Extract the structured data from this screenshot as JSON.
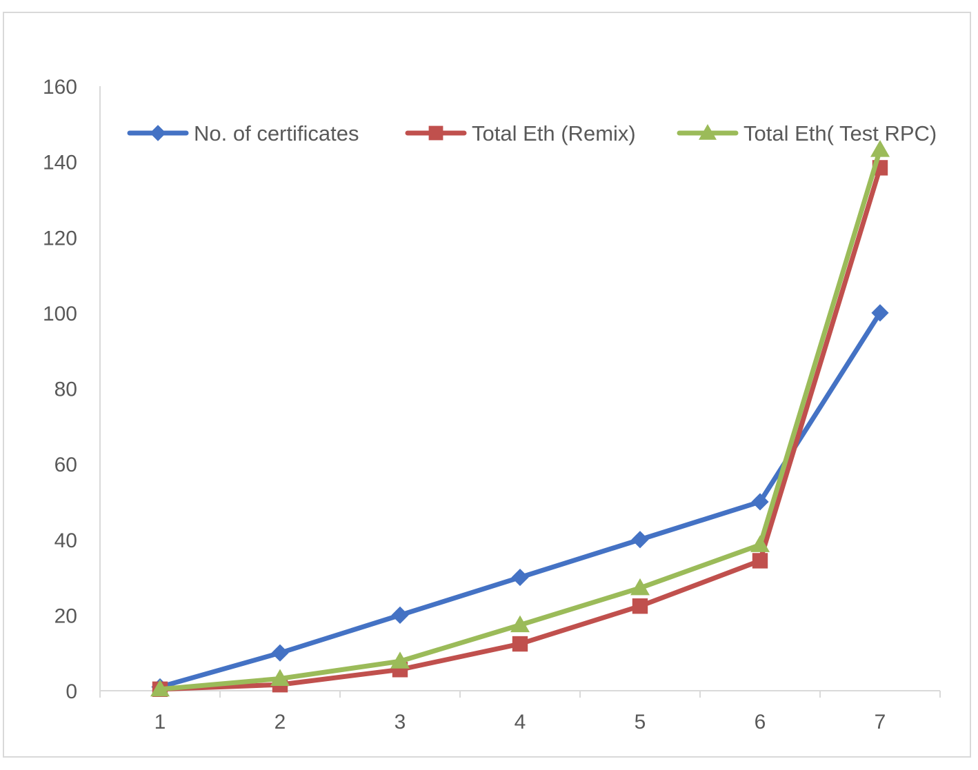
{
  "chart_data": {
    "type": "line",
    "title": "",
    "xlabel": "",
    "ylabel": "",
    "categories": [
      "1",
      "2",
      "3",
      "4",
      "5",
      "6",
      "7"
    ],
    "ylim": [
      0,
      160
    ],
    "yticks": [
      0,
      20,
      40,
      60,
      80,
      100,
      120,
      140,
      160
    ],
    "grid": false,
    "legend_position": "top",
    "series": [
      {
        "name": "No. of certificates",
        "color": "#4472C4",
        "marker": "diamond",
        "values": [
          1,
          10,
          20,
          30,
          40,
          50,
          100
        ]
      },
      {
        "name": "Total Eth (Remix)",
        "color": "#C0504D",
        "marker": "square",
        "values": [
          0.4,
          1.6,
          5.6,
          12.4,
          22.4,
          34.4,
          138.4
        ]
      },
      {
        "name": "Total Eth( Test RPC)",
        "color": "#9BBB59",
        "marker": "triangle",
        "values": [
          0.4,
          3.2,
          7.8,
          17.4,
          27.2,
          38.6,
          143.2
        ]
      }
    ]
  }
}
